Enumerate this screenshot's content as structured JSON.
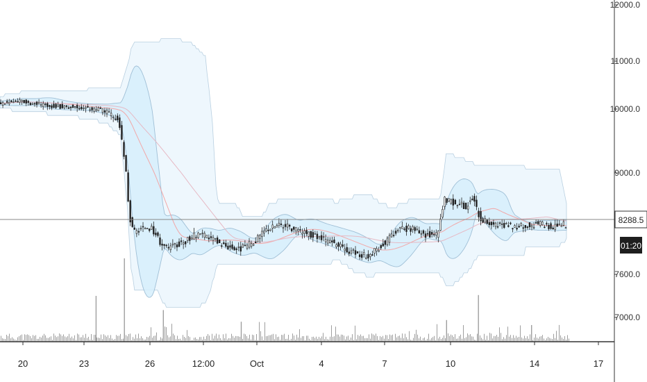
{
  "chart_data": {
    "type": "candlestick",
    "y_ticks": [
      "12000.0",
      "11000.0",
      "10000.0",
      "9000.0",
      "7600.0",
      "7000.0"
    ],
    "x_ticks": [
      "20",
      "23",
      "26",
      "12:00",
      "Oct",
      "4",
      "7",
      "10",
      "14",
      "17"
    ],
    "last_price": "8288.5",
    "countdown": "01:20",
    "price_points": [
      [
        0,
        10120
      ],
      [
        3,
        10170
      ],
      [
        6,
        10090
      ],
      [
        9,
        10050
      ],
      [
        12,
        10030
      ],
      [
        15,
        9970
      ],
      [
        17,
        9820
      ],
      [
        18,
        9000
      ],
      [
        18.5,
        8400
      ],
      [
        19,
        8180
      ],
      [
        20,
        8220
      ],
      [
        21,
        8270
      ],
      [
        22,
        8190
      ],
      [
        23,
        8020
      ],
      [
        24,
        7960
      ],
      [
        26,
        8040
      ],
      [
        28,
        8150
      ],
      [
        30,
        8100
      ],
      [
        32,
        8000
      ],
      [
        34,
        7950
      ],
      [
        36,
        8050
      ],
      [
        38,
        8240
      ],
      [
        40,
        8290
      ],
      [
        42,
        8210
      ],
      [
        44,
        8150
      ],
      [
        46,
        8080
      ],
      [
        48,
        8000
      ],
      [
        50,
        7900
      ],
      [
        52,
        7850
      ],
      [
        54,
        7990
      ],
      [
        56,
        8190
      ],
      [
        58,
        8240
      ],
      [
        60,
        8150
      ],
      [
        62,
        8150
      ],
      [
        63,
        8650
      ],
      [
        64.5,
        8580
      ],
      [
        66,
        8540
      ],
      [
        67,
        8650
      ],
      [
        68,
        8380
      ],
      [
        70,
        8280
      ],
      [
        72,
        8270
      ],
      [
        74,
        8260
      ],
      [
        76,
        8300
      ],
      [
        78,
        8250
      ],
      [
        79,
        8280
      ],
      [
        80,
        8288.5
      ]
    ],
    "volume_spikes": [
      [
        13.5,
        55
      ],
      [
        17.5,
        100
      ],
      [
        23,
        38
      ],
      [
        34,
        24
      ],
      [
        63,
        26
      ],
      [
        67.5,
        56
      ],
      [
        75,
        20
      ]
    ],
    "colors": {
      "candle": "#222222",
      "band_fill": "#d6eefb",
      "band_edge": "#b8cfe0",
      "outer_fill": "#eef7fd",
      "mid_line": "#f2a7a7",
      "axis": "#333333",
      "crosshair": "#888888",
      "volume": "#9e9e9e"
    }
  }
}
